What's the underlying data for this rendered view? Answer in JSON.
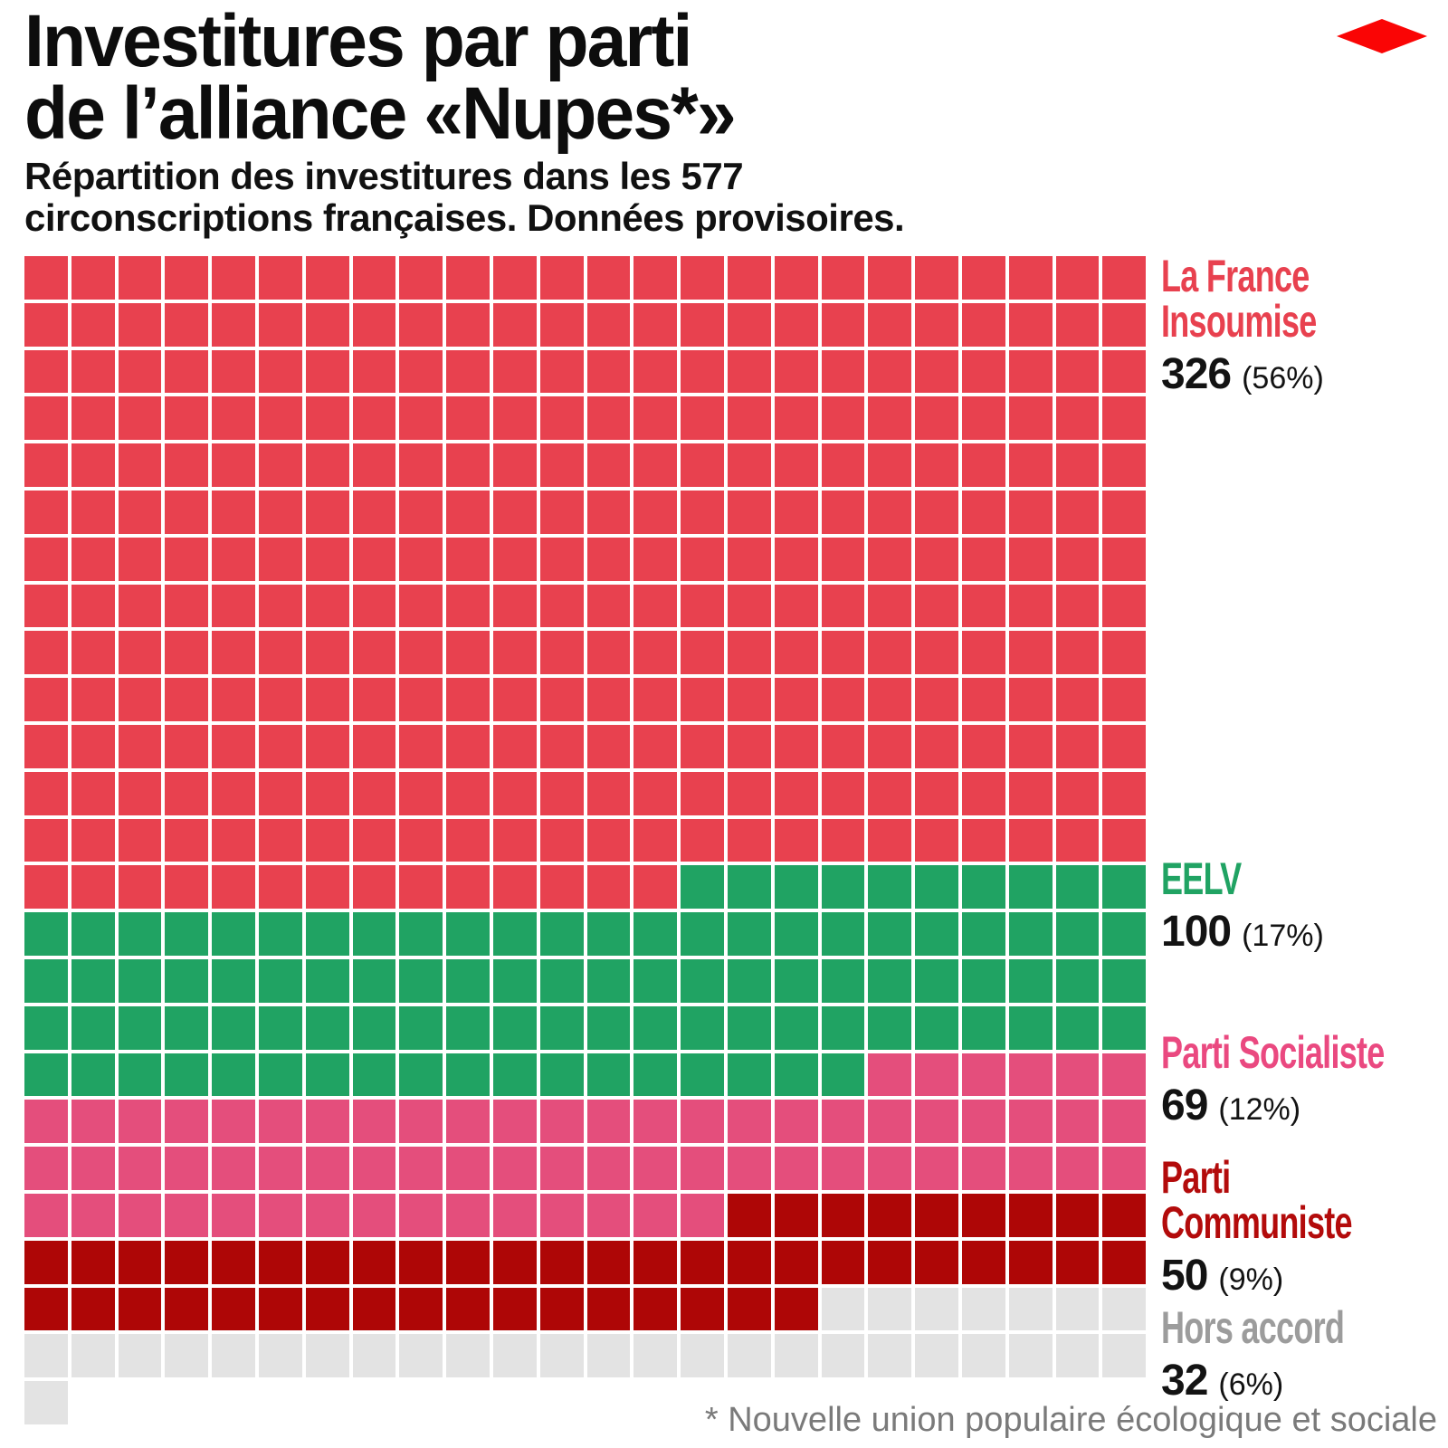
{
  "title": {
    "line1": "Investitures par parti",
    "line2": "de l’alliance «Nupes*»"
  },
  "subtitle": {
    "line1": "Répartition des investitures dans les 577",
    "line2": "circonscriptions françaises. Données provisoires."
  },
  "footnote": "* Nouvelle union populaire écologique et sociale",
  "logo": {
    "color": "#FA0505"
  },
  "chart_data": {
    "type": "waffle",
    "title": "Investitures par parti de l’alliance «Nupes*»",
    "total": 577,
    "grid": {
      "columns": 24,
      "rows": 25,
      "fill_order": "left-to-right, top-to-bottom"
    },
    "legend_position": "right",
    "categories": [
      {
        "label": "La France Insoumise",
        "label_lines": [
          "La France",
          "Insoumise"
        ],
        "value": 326,
        "value_text": "326",
        "percent_text": "(56%)",
        "color": "#E8414F",
        "label_color": "#E8414F"
      },
      {
        "label": "EELV",
        "label_lines": [
          "EELV"
        ],
        "value": 100,
        "value_text": "100",
        "percent_text": "(17%)",
        "color": "#20A363",
        "label_color": "#20A363"
      },
      {
        "label": "Parti Socialiste",
        "label_lines": [
          "Parti Socialiste"
        ],
        "value": 69,
        "value_text": "69",
        "percent_text": "(12%)",
        "color": "#E44E7C",
        "label_color": "#EA4980"
      },
      {
        "label": "Parti Communiste",
        "label_lines": [
          "Parti",
          "Communiste"
        ],
        "value": 50,
        "value_text": "50",
        "percent_text": "(9%)",
        "color": "#AE0606",
        "label_color": "#B30B0B"
      },
      {
        "label": "Hors accord",
        "label_lines": [
          "Hors accord"
        ],
        "value": 32,
        "value_text": "32",
        "percent_text": "(6%)",
        "color": "#E3E3E3",
        "label_color": "#9C9C9C"
      }
    ]
  }
}
